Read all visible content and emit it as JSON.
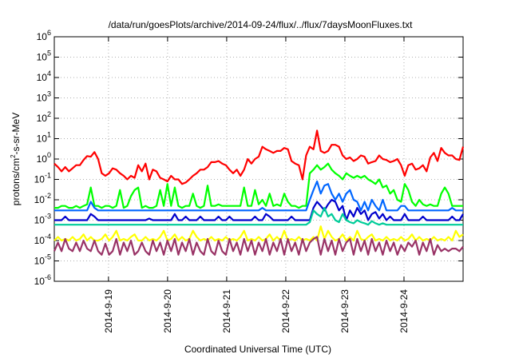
{
  "chart_data": {
    "type": "line",
    "title": "/data/run/goesPlots/archive/2014-09-24/flux/../flux/7daysMoonFluxes.txt",
    "xlabel": "Coordinated Universal Time (UTC)",
    "ylabel": "protons/cm2-s-sr-MeV",
    "ylabel_parts": {
      "base": "protons/cm",
      "sup": "2",
      "rest": "-s-sr-MeV"
    },
    "yscale": "log",
    "ylim": [
      1e-06,
      1000000.0
    ],
    "y_ticks": [
      {
        "exp": -6
      },
      {
        "exp": -5
      },
      {
        "exp": -4
      },
      {
        "exp": -3
      },
      {
        "exp": -2
      },
      {
        "exp": -1
      },
      {
        "exp": 0
      },
      {
        "exp": 1
      },
      {
        "exp": 2
      },
      {
        "exp": 3
      },
      {
        "exp": 4
      },
      {
        "exp": 5
      },
      {
        "exp": 6
      }
    ],
    "y_tick_base": "10",
    "xlim": [
      "2014-09-18 02:00",
      "2014-09-25 00:00"
    ],
    "x_ticks": [
      {
        "label": "2014-9-19",
        "day": 1
      },
      {
        "label": "2014-9-20",
        "day": 2
      },
      {
        "label": "2014-9-21",
        "day": 3
      },
      {
        "label": "2014-9-22",
        "day": 4
      },
      {
        "label": "2014-9-23",
        "day": 5
      },
      {
        "label": "2014-9-24",
        "day": 6
      }
    ],
    "grid": true,
    "series": [
      {
        "color": "#ff0000",
        "x_start": "2014-09-18 02:00",
        "x_end": "2014-09-25 00:00",
        "values": [
          0.6,
          0.4,
          0.25,
          0.4,
          0.25,
          0.35,
          0.5,
          0.5,
          0.9,
          1.4,
          1.3,
          2.2,
          1.0,
          0.2,
          0.15,
          0.2,
          0.35,
          0.3,
          0.2,
          0.15,
          0.1,
          0.15,
          0.12,
          0.5,
          0.25,
          0.6,
          0.1,
          0.3,
          0.25,
          0.12,
          0.1,
          0.08,
          0.15,
          0.1,
          0.1,
          0.06,
          0.07,
          0.1,
          0.15,
          0.2,
          0.3,
          0.3,
          0.4,
          0.7,
          0.7,
          0.8,
          0.6,
          0.5,
          0.3,
          0.2,
          0.3,
          0.15,
          0.3,
          1.0,
          0.6,
          1.0,
          1.3,
          4.0,
          3.0,
          2.5,
          2.0,
          2.5,
          2.5,
          3.5,
          3.0,
          0.8,
          0.6,
          0.5,
          0.1,
          1.5,
          4.0,
          3.0,
          25,
          2.5,
          2.0,
          2.5,
          5.0,
          5.0,
          4.0,
          1.5,
          1.0,
          1.2,
          0.8,
          1.0,
          1.5,
          1.3,
          0.6,
          0.7,
          0.8,
          1.5,
          1.0,
          0.9,
          0.7,
          0.8,
          1.0,
          0.5,
          0.15,
          0.5,
          0.6,
          0.3,
          0.35,
          0.5,
          0.25,
          1.2,
          2.0,
          0.8,
          3.5,
          2.0,
          1.5,
          1.5,
          1.0,
          0.9,
          4.0
        ]
      },
      {
        "color": "#00ff00",
        "x_start": "2014-09-18 02:00",
        "x_end": "2014-09-25 00:00",
        "values": [
          0.004,
          0.004,
          0.005,
          0.005,
          0.004,
          0.004,
          0.005,
          0.004,
          0.005,
          0.006,
          0.04,
          0.005,
          0.005,
          0.004,
          0.005,
          0.005,
          0.004,
          0.005,
          0.03,
          0.004,
          0.005,
          0.015,
          0.03,
          0.04,
          0.004,
          0.005,
          0.004,
          0.004,
          0.005,
          0.03,
          0.005,
          0.06,
          0.005,
          0.04,
          0.005,
          0.004,
          0.005,
          0.005,
          0.02,
          0.005,
          0.004,
          0.005,
          0.05,
          0.005,
          0.005,
          0.006,
          0.005,
          0.005,
          0.005,
          0.005,
          0.005,
          0.005,
          0.04,
          0.005,
          0.005,
          0.03,
          0.006,
          0.01,
          0.005,
          0.02,
          0.005,
          0.006,
          0.005,
          0.02,
          0.008,
          0.005,
          0.005,
          0.004,
          0.005,
          0.005,
          0.2,
          0.3,
          0.5,
          0.3,
          0.4,
          0.6,
          0.3,
          0.2,
          0.15,
          0.1,
          0.2,
          0.15,
          0.12,
          0.15,
          0.12,
          0.15,
          0.1,
          0.08,
          0.06,
          0.1,
          0.04,
          0.05,
          0.02,
          0.03,
          0.01,
          0.008,
          0.06,
          0.03,
          0.008,
          0.005,
          0.01,
          0.006,
          0.005,
          0.006,
          0.005,
          0.005,
          0.02,
          0.04,
          0.02,
          0.005,
          0.005,
          0.005,
          0.005
        ]
      },
      {
        "color": "#0066ff",
        "x_start": "2014-09-18 02:00",
        "x_end": "2014-09-25 00:00",
        "values": [
          0.003,
          0.003,
          0.003,
          0.003,
          0.003,
          0.003,
          0.003,
          0.003,
          0.003,
          0.003,
          0.008,
          0.004,
          0.003,
          0.003,
          0.003,
          0.003,
          0.003,
          0.003,
          0.003,
          0.003,
          0.003,
          0.003,
          0.003,
          0.003,
          0.003,
          0.003,
          0.003,
          0.003,
          0.003,
          0.003,
          0.003,
          0.003,
          0.003,
          0.003,
          0.003,
          0.003,
          0.003,
          0.003,
          0.003,
          0.003,
          0.003,
          0.003,
          0.003,
          0.003,
          0.003,
          0.003,
          0.003,
          0.003,
          0.003,
          0.003,
          0.003,
          0.003,
          0.003,
          0.003,
          0.003,
          0.003,
          0.003,
          0.004,
          0.003,
          0.003,
          0.003,
          0.003,
          0.003,
          0.003,
          0.003,
          0.003,
          0.003,
          0.003,
          0.003,
          0.003,
          0.01,
          0.03,
          0.08,
          0.02,
          0.05,
          0.06,
          0.02,
          0.01,
          0.02,
          0.008,
          0.02,
          0.03,
          0.01,
          0.008,
          0.003,
          0.008,
          0.003,
          0.01,
          0.005,
          0.003,
          0.01,
          0.003,
          0.003,
          0.003,
          0.003,
          0.005,
          0.005,
          0.003,
          0.003,
          0.003,
          0.003,
          0.003,
          0.003,
          0.003,
          0.003,
          0.003,
          0.003,
          0.003,
          0.003,
          0.004,
          0.003,
          0.003,
          0.003
        ]
      },
      {
        "color": "#0000cc",
        "x_start": "2014-09-18 02:00",
        "x_end": "2014-09-25 00:00",
        "values": [
          0.001,
          0.001,
          0.001,
          0.0015,
          0.001,
          0.001,
          0.001,
          0.001,
          0.001,
          0.001,
          0.002,
          0.0015,
          0.001,
          0.001,
          0.001,
          0.001,
          0.001,
          0.001,
          0.001,
          0.001,
          0.001,
          0.001,
          0.001,
          0.001,
          0.001,
          0.001,
          0.0012,
          0.001,
          0.001,
          0.001,
          0.001,
          0.001,
          0.001,
          0.002,
          0.001,
          0.001,
          0.0015,
          0.001,
          0.001,
          0.001,
          0.0015,
          0.001,
          0.001,
          0.001,
          0.001,
          0.0015,
          0.001,
          0.001,
          0.0015,
          0.001,
          0.001,
          0.001,
          0.001,
          0.001,
          0.001,
          0.0015,
          0.001,
          0.001,
          0.002,
          0.0015,
          0.001,
          0.001,
          0.001,
          0.001,
          0.001,
          0.0015,
          0.001,
          0.001,
          0.001,
          0.001,
          0.001,
          0.004,
          0.008,
          0.005,
          0.003,
          0.006,
          0.01,
          0.008,
          0.003,
          0.005,
          0.001,
          0.003,
          0.0015,
          0.004,
          0.002,
          0.003,
          0.001,
          0.002,
          0.0025,
          0.0012,
          0.002,
          0.001,
          0.0015,
          0.001,
          0.001,
          0.001,
          0.002,
          0.001,
          0.001,
          0.001,
          0.001,
          0.0015,
          0.001,
          0.001,
          0.001,
          0.001,
          0.001,
          0.001,
          0.001,
          0.0015,
          0.001,
          0.001,
          0.002
        ]
      },
      {
        "color": "#00cc99",
        "x_start": "2014-09-18 02:00",
        "x_end": "2014-09-25 00:00",
        "values": [
          0.0006,
          0.0006,
          0.0006,
          0.0006,
          0.0006,
          0.0006,
          0.0006,
          0.0006,
          0.0006,
          0.0006,
          0.0006,
          0.0006,
          0.0006,
          0.0006,
          0.0006,
          0.0006,
          0.0006,
          0.0006,
          0.0006,
          0.0006,
          0.0006,
          0.0006,
          0.0006,
          0.0006,
          0.0006,
          0.0006,
          0.0006,
          0.0006,
          0.0006,
          0.0006,
          0.0006,
          0.0006,
          0.0006,
          0.0006,
          0.0006,
          0.0006,
          0.0006,
          0.0006,
          0.0006,
          0.0006,
          0.0006,
          0.0006,
          0.0006,
          0.0006,
          0.0006,
          0.0006,
          0.0006,
          0.0006,
          0.0006,
          0.0006,
          0.0006,
          0.0006,
          0.0006,
          0.0006,
          0.0006,
          0.0006,
          0.0006,
          0.0006,
          0.0006,
          0.0006,
          0.0006,
          0.0006,
          0.0006,
          0.0006,
          0.0006,
          0.0006,
          0.0006,
          0.0006,
          0.0006,
          0.0006,
          0.0008,
          0.003,
          0.002,
          0.0015,
          0.004,
          0.0015,
          0.002,
          0.001,
          0.0008,
          0.002,
          0.001,
          0.0008,
          0.0007,
          0.001,
          0.0008,
          0.0007,
          0.0006,
          0.0009,
          0.0007,
          0.0006,
          0.0007,
          0.0006,
          0.0006,
          0.0006,
          0.0006,
          0.0006,
          0.0006,
          0.0006,
          0.0006,
          0.0006,
          0.0006,
          0.0006,
          0.0006,
          0.0006,
          0.0006,
          0.0006,
          0.0006,
          0.0006,
          0.0006,
          0.0006,
          0.0006,
          0.0006,
          0.0006
        ]
      },
      {
        "color": "#ffff00",
        "x_start": "2014-09-18 02:00",
        "x_end": "2014-09-25 00:00",
        "values": [
          0.0001,
          0.00015,
          0.0001,
          0.00012,
          0.0001,
          0.00015,
          0.0001,
          0.00012,
          0.0002,
          0.0001,
          0.00015,
          0.0001,
          0.0001,
          0.00012,
          0.0002,
          0.0001,
          0.00015,
          0.0003,
          0.0001,
          0.00012,
          0.0001,
          0.00015,
          0.0002,
          0.0001,
          0.0001,
          0.00015,
          0.0001,
          0.00012,
          0.0001,
          0.00015,
          0.0003,
          0.0001,
          0.00012,
          0.0002,
          0.0001,
          0.00015,
          0.0001,
          0.00012,
          0.0003,
          0.00015,
          0.0001,
          0.00012,
          0.0001,
          0.00015,
          0.0001,
          0.00012,
          0.0001,
          0.00015,
          0.0001,
          0.00012,
          0.0001,
          0.00015,
          0.0003,
          0.0001,
          0.00012,
          0.0001,
          0.00015,
          0.0001,
          0.00012,
          0.0002,
          0.0001,
          0.00015,
          0.0001,
          0.0003,
          0.0001,
          0.00012,
          0.0001,
          0.00015,
          0.0001,
          0.00012,
          0.0001,
          0.00015,
          0.0001,
          0.0005,
          0.00012,
          0.0003,
          0.00015,
          0.0001,
          0.00012,
          0.0002,
          0.0001,
          0.00015,
          0.0001,
          0.0003,
          0.00012,
          0.0001,
          0.00015,
          0.0002,
          0.0001,
          0.00012,
          0.0001,
          0.00015,
          0.0001,
          0.00012,
          0.0001,
          0.00015,
          0.0001,
          0.00012,
          0.0002,
          0.0001,
          0.00015,
          0.0001,
          0.00012,
          0.0001,
          0.00015,
          0.0001,
          0.00012,
          0.0001,
          0.00015,
          0.0001,
          0.0003,
          0.00015,
          0.0002
        ]
      },
      {
        "color": "#993366",
        "x_start": "2014-09-18 02:00",
        "x_end": "2014-09-25 00:00",
        "values": [
          3e-05,
          8e-05,
          3e-05,
          0.00012,
          4e-05,
          3e-05,
          8e-05,
          3e-05,
          0.0001,
          4e-05,
          3e-05,
          0.0001,
          3e-05,
          2e-05,
          7e-05,
          2e-05,
          3e-05,
          0.00012,
          2e-05,
          8e-05,
          3e-05,
          0.0001,
          2e-05,
          3e-05,
          8e-05,
          3e-05,
          2e-05,
          0.0001,
          3e-05,
          8e-05,
          2e-05,
          0.0001,
          3e-05,
          0.00012,
          2e-05,
          8e-05,
          3e-05,
          0.00012,
          2e-05,
          8e-05,
          3e-05,
          2e-05,
          0.00012,
          3e-05,
          2e-05,
          0.0001,
          3e-05,
          2e-05,
          0.00012,
          3e-05,
          8e-05,
          2e-05,
          0.00012,
          3e-05,
          0.0001,
          2e-05,
          8e-05,
          3e-05,
          0.00012,
          2e-05,
          8e-05,
          3e-05,
          0.00012,
          2e-05,
          0.00012,
          3e-05,
          8e-05,
          2e-05,
          0.00012,
          3e-05,
          8e-05,
          0.00012,
          0.00015,
          2e-05,
          0.00012,
          3e-05,
          0.0001,
          2e-05,
          0.00012,
          3e-05,
          8e-05,
          0.00012,
          2e-05,
          0.00012,
          3e-05,
          0.0001,
          2e-05,
          0.00012,
          3e-05,
          8e-05,
          2e-05,
          0.0001,
          3e-05,
          8e-05,
          2e-05,
          6e-05,
          3e-05,
          8e-05,
          5e-05,
          0.0001,
          2e-05,
          8e-05,
          3e-05,
          0.00012,
          2e-05,
          6e-05,
          3e-05,
          4e-05,
          3e-05,
          4e-05,
          4e-05,
          3e-05,
          5e-05
        ]
      }
    ]
  }
}
